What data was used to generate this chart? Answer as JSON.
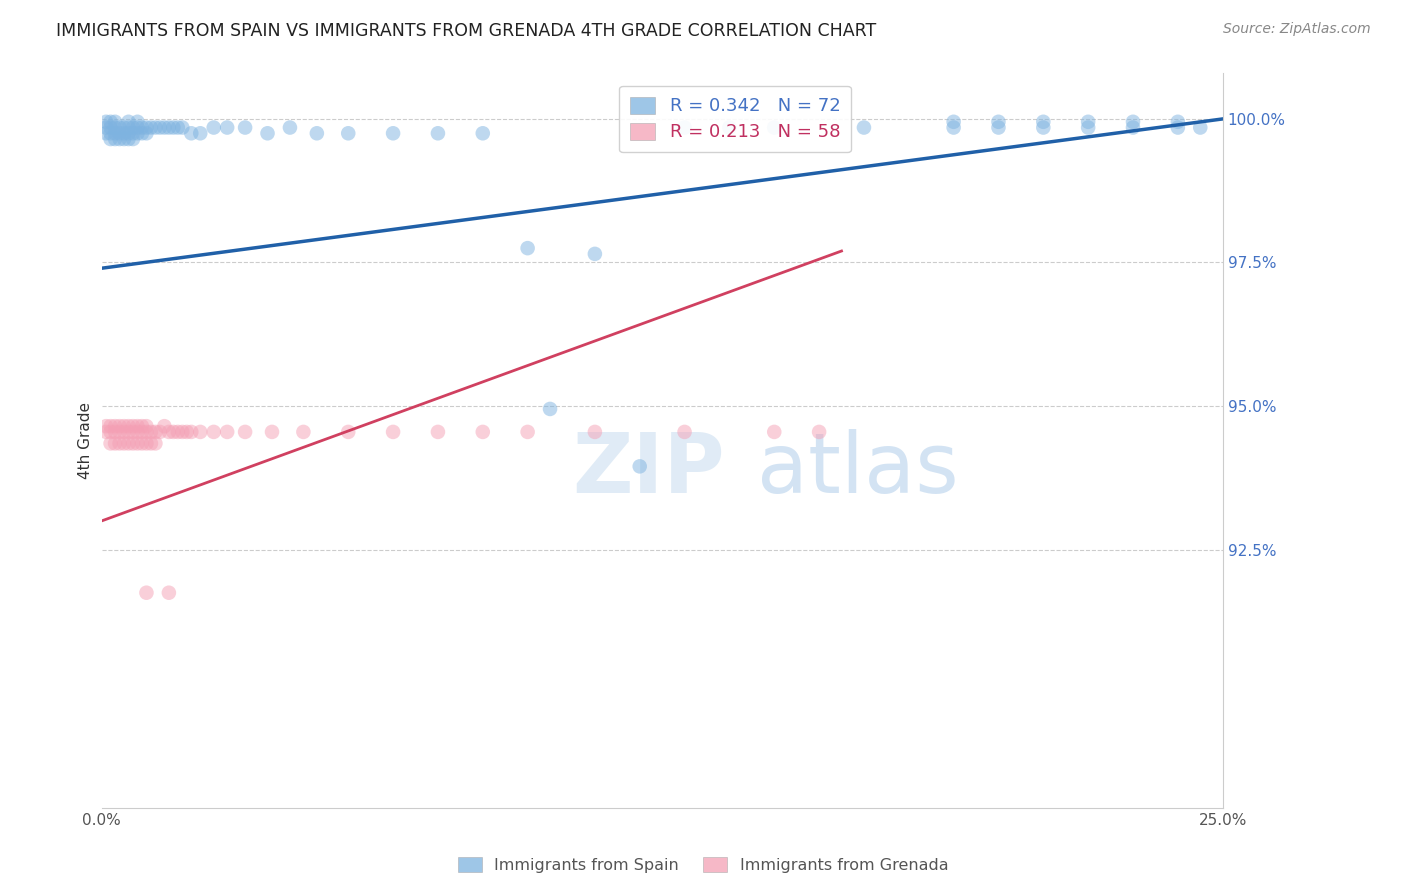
{
  "title": "IMMIGRANTS FROM SPAIN VS IMMIGRANTS FROM GRENADA 4TH GRADE CORRELATION CHART",
  "source": "Source: ZipAtlas.com",
  "ylabel": "4th Grade",
  "xlim": [
    0.0,
    0.25
  ],
  "ylim": [
    0.88,
    1.008
  ],
  "xticks": [
    0.0,
    0.05,
    0.1,
    0.15,
    0.2,
    0.25
  ],
  "xticklabels": [
    "0.0%",
    "",
    "",
    "",
    "",
    "25.0%"
  ],
  "ytick_vals": [
    0.925,
    0.95,
    0.975,
    1.0
  ],
  "ytick_labels": [
    "92.5%",
    "95.0%",
    "97.5%",
    "100.0%"
  ],
  "legend_spain": "Immigrants from Spain",
  "legend_grenada": "Immigrants from Grenada",
  "r_spain": 0.342,
  "n_spain": 72,
  "r_grenada": 0.213,
  "n_grenada": 58,
  "color_spain": "#7EB3E0",
  "color_grenada": "#F4A0B5",
  "trendline_spain_color": "#2060A8",
  "trendline_grenada_color": "#D04060",
  "watermark": "ZIPatlas",
  "spain_x": [
    0.001,
    0.001,
    0.001,
    0.002,
    0.002,
    0.002,
    0.002,
    0.003,
    0.003,
    0.003,
    0.003,
    0.004,
    0.004,
    0.004,
    0.005,
    0.005,
    0.005,
    0.006,
    0.006,
    0.006,
    0.006,
    0.007,
    0.007,
    0.007,
    0.008,
    0.008,
    0.008,
    0.009,
    0.009,
    0.01,
    0.01,
    0.011,
    0.012,
    0.013,
    0.014,
    0.015,
    0.016,
    0.017,
    0.018,
    0.02,
    0.022,
    0.025,
    0.028,
    0.032,
    0.037,
    0.042,
    0.048,
    0.055,
    0.065,
    0.075,
    0.085,
    0.095,
    0.11,
    0.13,
    0.15,
    0.17,
    0.19,
    0.2,
    0.21,
    0.22,
    0.23,
    0.24,
    0.245,
    0.19,
    0.2,
    0.21,
    0.22,
    0.23,
    0.24,
    0.1,
    0.12,
    0.14
  ],
  "spain_y": [
    0.9995,
    0.9985,
    0.9975,
    0.9995,
    0.9985,
    0.9975,
    0.9965,
    0.9995,
    0.9985,
    0.9975,
    0.9965,
    0.9985,
    0.9975,
    0.9965,
    0.9985,
    0.9975,
    0.9965,
    0.9985,
    0.9975,
    0.9995,
    0.9965,
    0.9985,
    0.9975,
    0.9965,
    0.9985,
    0.9975,
    0.9995,
    0.9985,
    0.9975,
    0.9985,
    0.9975,
    0.9985,
    0.9985,
    0.9985,
    0.9985,
    0.9985,
    0.9985,
    0.9985,
    0.9985,
    0.9975,
    0.9975,
    0.9985,
    0.9985,
    0.9985,
    0.9975,
    0.9985,
    0.9975,
    0.9975,
    0.9975,
    0.9975,
    0.9975,
    0.9775,
    0.9765,
    0.9985,
    0.9985,
    0.9985,
    0.9985,
    0.9985,
    0.9985,
    0.9985,
    0.9985,
    0.9985,
    0.9985,
    0.9995,
    0.9995,
    0.9995,
    0.9995,
    0.9995,
    0.9995,
    0.9495,
    0.9395,
    0.9985
  ],
  "grenada_x": [
    0.001,
    0.001,
    0.002,
    0.002,
    0.002,
    0.003,
    0.003,
    0.003,
    0.004,
    0.004,
    0.004,
    0.005,
    0.005,
    0.005,
    0.006,
    0.006,
    0.006,
    0.007,
    0.007,
    0.007,
    0.008,
    0.008,
    0.008,
    0.009,
    0.009,
    0.009,
    0.01,
    0.01,
    0.01,
    0.011,
    0.011,
    0.012,
    0.012,
    0.013,
    0.014,
    0.015,
    0.016,
    0.017,
    0.018,
    0.019,
    0.02,
    0.022,
    0.025,
    0.028,
    0.032,
    0.038,
    0.045,
    0.055,
    0.065,
    0.075,
    0.085,
    0.095,
    0.11,
    0.13,
    0.15,
    0.16,
    0.01,
    0.015
  ],
  "grenada_y": [
    0.9455,
    0.9465,
    0.9455,
    0.9465,
    0.9435,
    0.9455,
    0.9465,
    0.9435,
    0.9455,
    0.9465,
    0.9435,
    0.9455,
    0.9465,
    0.9435,
    0.9455,
    0.9465,
    0.9435,
    0.9455,
    0.9435,
    0.9465,
    0.9455,
    0.9435,
    0.9465,
    0.9455,
    0.9465,
    0.9435,
    0.9455,
    0.9465,
    0.9435,
    0.9455,
    0.9435,
    0.9455,
    0.9435,
    0.9455,
    0.9465,
    0.9455,
    0.9455,
    0.9455,
    0.9455,
    0.9455,
    0.9455,
    0.9455,
    0.9455,
    0.9455,
    0.9455,
    0.9455,
    0.9455,
    0.9455,
    0.9455,
    0.9455,
    0.9455,
    0.9455,
    0.9455,
    0.9455,
    0.9455,
    0.9455,
    0.9175,
    0.9175
  ]
}
